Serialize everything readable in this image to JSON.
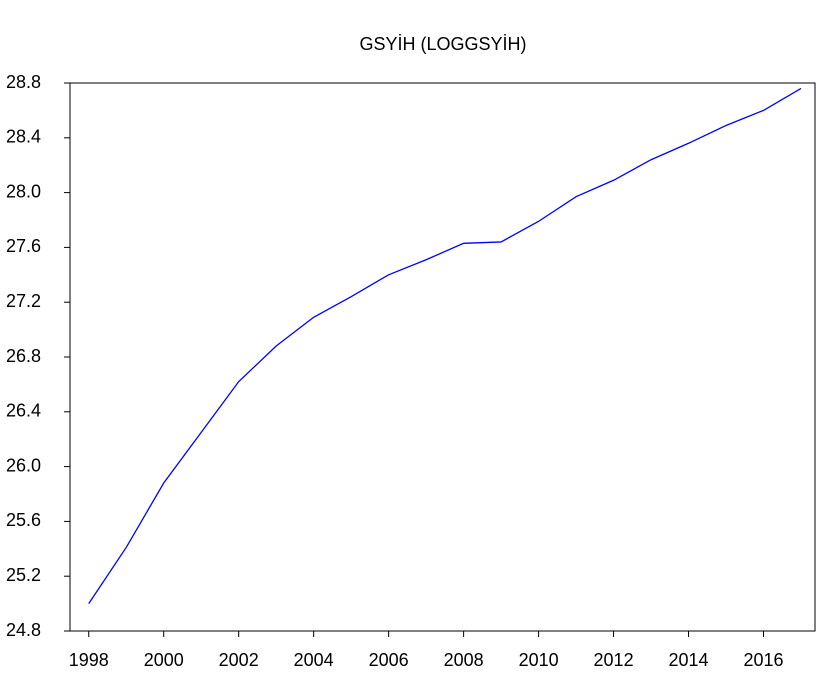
{
  "chart_data": {
    "type": "line",
    "title": "GSYİH (LOGGSYİH)",
    "x": [
      1998,
      1999,
      2000,
      2001,
      2002,
      2003,
      2004,
      2005,
      2006,
      2007,
      2008,
      2009,
      2010,
      2011,
      2012,
      2013,
      2014,
      2015,
      2016,
      2017
    ],
    "series": [
      {
        "name": "LOGGSYİH",
        "color": "#0000ff",
        "values": [
          25.0,
          25.41,
          25.88,
          26.25,
          26.62,
          26.88,
          27.09,
          27.24,
          27.4,
          27.51,
          27.63,
          27.64,
          27.79,
          27.97,
          28.09,
          28.24,
          28.36,
          28.49,
          28.6,
          28.76
        ]
      }
    ],
    "xlim": [
      1997.5,
      2017.4
    ],
    "xticks": [
      1998,
      2000,
      2002,
      2004,
      2006,
      2008,
      2010,
      2012,
      2014,
      2016
    ],
    "ylim": [
      24.8,
      28.8
    ],
    "yticks": [
      {
        "value": 24.8,
        "label": "24.8"
      },
      {
        "value": 25.2,
        "label": "25.2"
      },
      {
        "value": 25.6,
        "label": "25.6"
      },
      {
        "value": 26.0,
        "label": "26.0"
      },
      {
        "value": 26.4,
        "label": "26.4"
      },
      {
        "value": 26.8,
        "label": "26.8"
      },
      {
        "value": 27.2,
        "label": "27.2"
      },
      {
        "value": 27.6,
        "label": "27.6"
      },
      {
        "value": 28.0,
        "label": "28.0"
      },
      {
        "value": 28.4,
        "label": "28.4"
      },
      {
        "value": 28.8,
        "label": "28.8"
      }
    ],
    "grid": false
  }
}
